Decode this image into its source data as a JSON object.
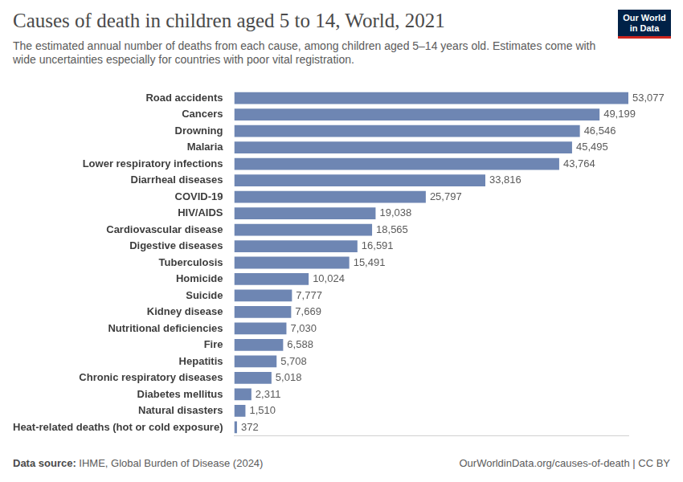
{
  "chart_data": {
    "type": "bar",
    "orientation": "horizontal",
    "title": "Causes of death in children aged 5 to 14, World, 2021",
    "subtitle": "The estimated annual number of deaths from each cause, among children aged 5–14 years old. Estimates come with wide uncertainties especially for countries with poor vital registration.",
    "source": "Data source: IHME, Global Burden of Disease (2024)",
    "footer_right": "OurWorldinData.org/causes-of-death | CC BY",
    "logo": "Our World in Data",
    "categories": [
      "Road accidents",
      "Cancers",
      "Drowning",
      "Malaria",
      "Lower respiratory infections",
      "Diarrheal diseases",
      "COVID-19",
      "HIV/AIDS",
      "Cardiovascular disease",
      "Digestive diseases",
      "Tuberculosis",
      "Homicide",
      "Suicide",
      "Kidney disease",
      "Nutritional deficiencies",
      "Fire",
      "Hepatitis",
      "Chronic respiratory diseases",
      "Diabetes mellitus",
      "Natural disasters",
      "Heat-related deaths (hot or cold exposure)"
    ],
    "values": [
      53077,
      49199,
      46546,
      45495,
      43764,
      33816,
      25797,
      19038,
      18565,
      16591,
      15491,
      10024,
      7777,
      7669,
      7030,
      6588,
      5708,
      5018,
      2311,
      1510,
      372
    ],
    "value_labels": [
      "53,077",
      "49,199",
      "46,546",
      "45,495",
      "43,764",
      "33,816",
      "25,797",
      "19,038",
      "18,565",
      "16,591",
      "15,491",
      "10,024",
      "7,777",
      "7,669",
      "7,030",
      "6,588",
      "5,708",
      "5,018",
      "2,311",
      "1,510",
      "372"
    ],
    "color": "#6e86b3",
    "xlim": [
      0,
      53077
    ],
    "grid": false,
    "data_labels": true,
    "tick_labels": "y"
  }
}
